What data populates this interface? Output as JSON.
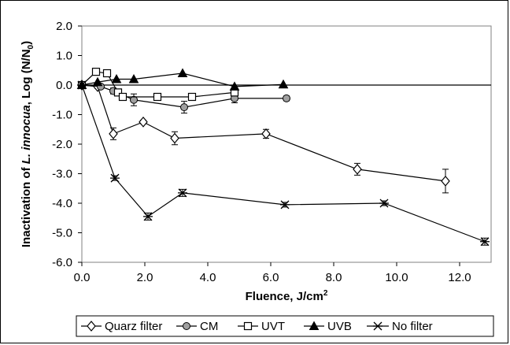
{
  "chart_data": {
    "type": "line",
    "xlabel_main": "Fluence, J/cm",
    "xlabel_sup": "2",
    "ylabel_parts": [
      {
        "text": "Inactivation of ",
        "italic": false
      },
      {
        "text": "L. innocua",
        "italic": true
      },
      {
        "text": ", Log (N/N",
        "italic": false
      },
      {
        "text": "0",
        "italic": false,
        "sub": true
      },
      {
        "text": ")",
        "italic": false
      }
    ],
    "xlim": [
      0,
      13
    ],
    "ylim": [
      -6,
      2
    ],
    "xticks": [
      0,
      2,
      4,
      6,
      8,
      10,
      12
    ],
    "xtick_labels": [
      "0.0",
      "2.0",
      "4.0",
      "6.0",
      "8.0",
      "10.0",
      "12.0"
    ],
    "yticks": [
      2,
      1,
      0,
      -1,
      -2,
      -3,
      -4,
      -5,
      -6
    ],
    "ytick_labels": [
      "2.0",
      "1.0",
      "0.0",
      "-1.0",
      "-2.0",
      "-3.0",
      "-4.0",
      "-5.0",
      "-6.0"
    ],
    "grid": false,
    "legend_position": "bottom",
    "series": [
      {
        "name": "Quarz filter",
        "marker": "diamond-open",
        "color": "#000000",
        "points": [
          {
            "x": 0,
            "y": 0,
            "err": 0
          },
          {
            "x": 0.5,
            "y": -0.05,
            "err": 0.06
          },
          {
            "x": 1.0,
            "y": -1.65,
            "err": 0.2
          },
          {
            "x": 1.95,
            "y": -1.25,
            "err": 0.06
          },
          {
            "x": 2.95,
            "y": -1.8,
            "err": 0.22
          },
          {
            "x": 5.85,
            "y": -1.65,
            "err": 0.15
          },
          {
            "x": 8.75,
            "y": -2.85,
            "err": 0.2
          },
          {
            "x": 11.55,
            "y": -3.25,
            "err": 0.4
          }
        ]
      },
      {
        "name": "CM",
        "marker": "circle-grey",
        "color": "#000000",
        "points": [
          {
            "x": 0,
            "y": 0,
            "err": 0
          },
          {
            "x": 0.6,
            "y": -0.05,
            "err": 0.05
          },
          {
            "x": 1.0,
            "y": -0.2,
            "err": 0.1
          },
          {
            "x": 1.65,
            "y": -0.5,
            "err": 0.2
          },
          {
            "x": 3.25,
            "y": -0.75,
            "err": 0.2
          },
          {
            "x": 4.85,
            "y": -0.45,
            "err": 0.15
          },
          {
            "x": 6.5,
            "y": -0.45,
            "err": 0.08
          }
        ]
      },
      {
        "name": "UVT",
        "marker": "square-open",
        "color": "#000000",
        "points": [
          {
            "x": 0,
            "y": 0,
            "err": 0
          },
          {
            "x": 0.45,
            "y": 0.45,
            "err": 0
          },
          {
            "x": 0.8,
            "y": 0.4,
            "err": 0
          },
          {
            "x": 1.15,
            "y": -0.25,
            "err": 0
          },
          {
            "x": 1.3,
            "y": -0.4,
            "err": 0
          },
          {
            "x": 2.4,
            "y": -0.4,
            "err": 0
          },
          {
            "x": 3.5,
            "y": -0.4,
            "err": 0
          },
          {
            "x": 4.85,
            "y": -0.25,
            "err": 0
          }
        ]
      },
      {
        "name": "UVB",
        "marker": "triangle-filled",
        "color": "#000000",
        "points": [
          {
            "x": 0,
            "y": 0,
            "err": 0
          },
          {
            "x": 0.5,
            "y": 0.1,
            "err": 0
          },
          {
            "x": 1.1,
            "y": 0.2,
            "err": 0
          },
          {
            "x": 1.65,
            "y": 0.2,
            "err": 0
          },
          {
            "x": 3.2,
            "y": 0.4,
            "err": 0
          },
          {
            "x": 4.85,
            "y": -0.05,
            "err": 0
          },
          {
            "x": 6.4,
            "y": 0.02,
            "err": 0
          }
        ]
      },
      {
        "name": "No filter",
        "marker": "asterisk",
        "color": "#000000",
        "points": [
          {
            "x": 0,
            "y": 0,
            "err": 0
          },
          {
            "x": 1.05,
            "y": -3.15,
            "err": 0.08
          },
          {
            "x": 2.1,
            "y": -4.45,
            "err": 0.12
          },
          {
            "x": 3.2,
            "y": -3.65,
            "err": 0.12
          },
          {
            "x": 6.45,
            "y": -4.05,
            "err": 0.08
          },
          {
            "x": 9.6,
            "y": -4.0,
            "err": 0.08
          },
          {
            "x": 12.8,
            "y": -5.3,
            "err": 0.12
          }
        ]
      }
    ]
  }
}
